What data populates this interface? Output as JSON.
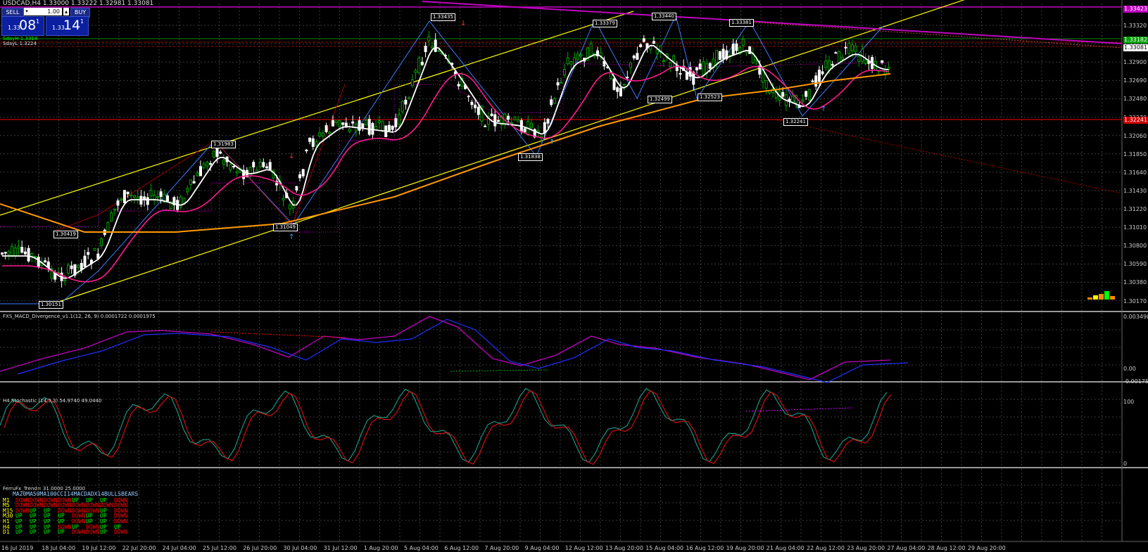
{
  "header": {
    "symbol_line": "USDCAD,H4  1.33000 1.33222 1.32981 1.33081",
    "sd_line_1": "SdayH 1.3318",
    "sd_line_2": "SdayL 1.3224"
  },
  "trade_panel": {
    "sell_label": "SELL",
    "buy_label": "BUY",
    "lot_value": "1.00",
    "sell_small": "1.33",
    "sell_big": "08",
    "sell_pip": "1",
    "buy_small": "1.33",
    "buy_big": "14",
    "buy_pip": "1"
  },
  "price_axis": [
    "1.33320",
    "1.33110",
    "1.32900",
    "1.32690",
    "1.32480",
    "1.32270",
    "1.32060",
    "1.31850",
    "1.31640",
    "1.31430",
    "1.31220",
    "1.31010",
    "1.30800",
    "1.30590",
    "1.30380",
    "1.30170"
  ],
  "price_tags": [
    {
      "text": "1.33423",
      "color": "#c000c0"
    },
    {
      "text": "1.33182",
      "color": "#00a000"
    },
    {
      "text": "1.33081",
      "color": "#ffffff"
    },
    {
      "text": "1.32241",
      "color": "#d00000"
    }
  ],
  "zigzag_labels": [
    "1.33435",
    "1.33379",
    "1.33440",
    "1.33381",
    "1.31983",
    "1.32499",
    "1.32523",
    "1.32241",
    "1.31838",
    "1.31049",
    "1.30419",
    "1.30151"
  ],
  "macd": {
    "title": "FXS_MACD_Divergence_v1.1(12, 26, 9) 0.0001722 0.0001975",
    "axis": [
      "0.0034901",
      "0.00",
      "-0.001757"
    ]
  },
  "stochastic": {
    "title": "H4 Stochastic (14,3,3) 54.9740 49.0440",
    "axis": [
      "100",
      "0"
    ]
  },
  "trend": {
    "title": "FerruFx_Trend= 31.0000 25.0000",
    "headers": "MA20MA50MA100CCI14MACDADX14BULLSBEARS",
    "rows": [
      {
        "tf": "M1",
        "values": [
          "DOWN",
          "DOWN",
          "DOWN",
          "DOWN",
          "UP",
          "UP",
          "UP",
          "DOWN"
        ]
      },
      {
        "tf": "M5",
        "values": [
          "DOWN",
          "DOWN",
          "DOWN",
          "DOWN",
          "DOWN",
          "DOWN",
          "DOWN",
          "DOWN"
        ]
      },
      {
        "tf": "M15",
        "values": [
          "DOWN",
          "UP",
          "UP",
          "DOWN",
          "DOWN",
          "DOWN",
          "UP",
          "DOWN"
        ]
      },
      {
        "tf": "M30",
        "values": [
          "UP",
          "UP",
          "UP",
          "UP",
          "DOWN",
          "UP",
          "UP",
          "DOWN"
        ]
      },
      {
        "tf": "H1",
        "values": [
          "UP",
          "UP",
          "UP",
          "UP",
          "DOWN",
          "UP",
          "UP",
          "DOWN"
        ]
      },
      {
        "tf": "H4",
        "values": [
          "UP",
          "UP",
          "UP",
          "DOWN",
          "UP",
          "DOWN",
          "UP",
          "UP"
        ]
      },
      {
        "tf": "D1",
        "values": [
          "UP",
          "UP",
          "UP",
          "UP",
          "DOWN",
          "DOWN",
          "UP",
          "DOWN"
        ]
      }
    ]
  },
  "time_axis": [
    "16 Jul 2019",
    "18 Jul 04:00",
    "19 Jul 12:00",
    "22 Jul 20:00",
    "24 Jul 04:00",
    "25 Jul 12:00",
    "26 Jul 20:00",
    "30 Jul 04:00",
    "31 Jul 12:00",
    "1 Aug 20:00",
    "5 Aug 04:00",
    "6 Aug 12:00",
    "7 Aug 20:00",
    "9 Aug 04:00",
    "12 Aug 12:00",
    "13 Aug 20:00",
    "15 Aug 04:00",
    "16 Aug 12:00",
    "19 Aug 20:00",
    "21 Aug 04:00",
    "22 Aug 12:00",
    "23 Aug 20:00",
    "27 Aug 04:00",
    "28 Aug 12:00",
    "29 Aug 20:00"
  ],
  "colors": {
    "background": "#000000",
    "grid": "#3a3a3a",
    "bull": "#00a000",
    "bear": "#ffffff",
    "channel": "#ffff00",
    "ma_white": "#ffffff",
    "ma_pink": "#ff1a8c",
    "ma_orange": "#ff9900",
    "zigzag": "#3a7bff",
    "resistance": "#c000c0"
  }
}
